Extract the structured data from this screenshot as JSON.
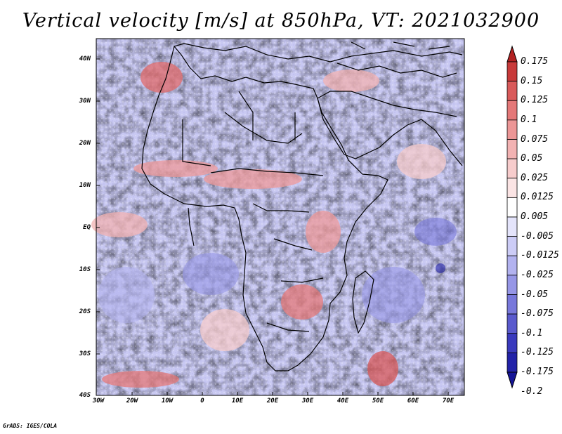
{
  "title": "Vertical velocity [m/s] at 850hPa, VT: 2021032900",
  "map": {
    "lat_labels": [
      "40N",
      "30N",
      "20N",
      "10N",
      "EQ",
      "10S",
      "20S",
      "30S",
      "40S"
    ],
    "lon_labels": [
      "30W",
      "20W",
      "10W",
      "0",
      "10E",
      "20E",
      "30E",
      "40E",
      "50E",
      "60E",
      "70E"
    ],
    "lat_range": [
      -40,
      45
    ],
    "lon_range": [
      -30,
      75
    ]
  },
  "colorbar": {
    "labels": [
      "0.175",
      "0.15",
      "0.125",
      "0.1",
      "0.075",
      "0.05",
      "0.025",
      "0.0125",
      "0.005",
      "-0.005",
      "-0.0125",
      "-0.025",
      "-0.05",
      "-0.075",
      "-0.1",
      "-0.125",
      "-0.175",
      "-0.2"
    ],
    "colors": [
      "#b22222",
      "#c83a3a",
      "#d95a5a",
      "#e47878",
      "#ec9696",
      "#f2b2b2",
      "#f7cccc",
      "#fbe4e4",
      "#ffffff",
      "#e4e4fb",
      "#ccccf6",
      "#b2b2ef",
      "#9696e6",
      "#7878db",
      "#5a5acd",
      "#3a3abd",
      "#2222a8",
      "#141496"
    ]
  },
  "credit": "GrADS: IGES/COLA"
}
